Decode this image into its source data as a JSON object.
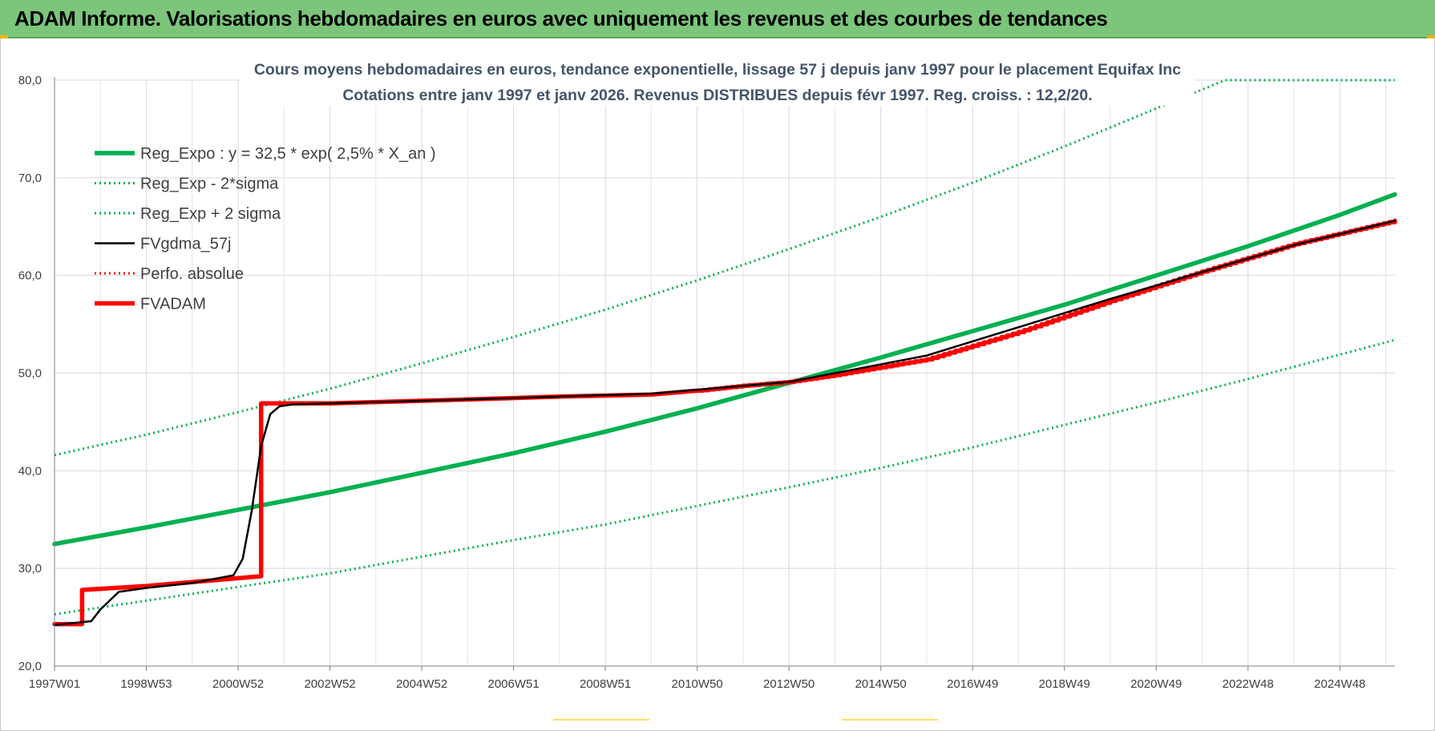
{
  "banner": {
    "title": "ADAM Informe. Valorisations hebdomadaires en euros avec uniquement les revenus et des courbes de tendances"
  },
  "chart_data": {
    "type": "line",
    "title": "Cours moyens hebdomadaires en euros, tendance exponentielle, lissage 57 j depuis janv 1997  pour le placement Equifax Inc",
    "subtitle": "Cotations entre janv 1997 et janv 2026. Revenus DISTRIBUES depuis févr 1997. Reg. croiss. : 12,2/20.",
    "xlabel": "",
    "ylabel": "",
    "ylim": [
      20,
      80
    ],
    "xlim": [
      1997.0,
      2026.2
    ],
    "grid": true,
    "legend_position": "top-left",
    "y_ticks": [
      "20,0",
      "30,0",
      "40,0",
      "50,0",
      "60,0",
      "70,0",
      "80,0"
    ],
    "y_tick_values": [
      20,
      30,
      40,
      50,
      60,
      70,
      80
    ],
    "x_ticks": [
      "1997W01",
      "1998W53",
      "2000W52",
      "2002W52",
      "2004W52",
      "2006W51",
      "2008W51",
      "2010W50",
      "2012W50",
      "2014W50",
      "2016W49",
      "2018W49",
      "2020W49",
      "2022W48",
      "2024W48"
    ],
    "x_tick_values": [
      1997,
      1999,
      2001,
      2003,
      2005,
      2007,
      2009,
      2011,
      2013,
      2015,
      2017,
      2019,
      2021,
      2023,
      2025
    ],
    "series": [
      {
        "name": "Reg_Expo : y = 32,5 * exp( 2,5% *  X_an )",
        "style": "solid-thick",
        "color": "#00b050",
        "x": [
          1997.0,
          1999.0,
          2001.0,
          2003.0,
          2005.0,
          2007.0,
          2009.0,
          2011.0,
          2013.0,
          2015.0,
          2017.0,
          2019.0,
          2021.0,
          2023.0,
          2025.0,
          2026.2
        ],
        "y": [
          32.5,
          34.2,
          36.0,
          37.8,
          39.8,
          41.8,
          44.0,
          46.4,
          49.0,
          51.6,
          54.3,
          57.0,
          60.0,
          63.0,
          66.2,
          68.3
        ]
      },
      {
        "name": "Reg_Exp - 2*sigma",
        "style": "dotted",
        "color": "#00b050",
        "x": [
          1997.0,
          1999.0,
          2001.0,
          2003.0,
          2005.0,
          2007.0,
          2009.0,
          2011.0,
          2013.0,
          2015.0,
          2017.0,
          2019.0,
          2021.0,
          2023.0,
          2025.0,
          2026.2
        ],
        "y": [
          25.3,
          26.7,
          28.1,
          29.5,
          31.2,
          32.9,
          34.5,
          36.4,
          38.3,
          40.3,
          42.4,
          44.7,
          47.0,
          49.4,
          51.9,
          53.4
        ]
      },
      {
        "name": "Reg_Exp + 2 sigma",
        "style": "dotted",
        "color": "#00b050",
        "x": [
          1997.0,
          1999.0,
          2001.0,
          2003.0,
          2005.0,
          2007.0,
          2009.0,
          2011.0,
          2013.0,
          2015.0,
          2017.0,
          2019.0,
          2021.0,
          2022.5,
          2026.2
        ],
        "y": [
          41.6,
          43.7,
          46.0,
          48.4,
          51.0,
          53.7,
          56.5,
          59.5,
          62.7,
          66.0,
          69.5,
          73.2,
          77.1,
          80.0,
          80.0
        ]
      },
      {
        "name": "FVgdma_57j",
        "style": "solid",
        "color": "#000000",
        "x": [
          1997.0,
          1997.8,
          1998.0,
          1998.4,
          1999.0,
          2000.0,
          2000.9,
          2001.1,
          2001.3,
          2001.5,
          2001.7,
          2001.9,
          2002.2,
          2003.0,
          2006.0,
          2010.0,
          2013.0,
          2016.0,
          2020.0,
          2024.0,
          2026.2
        ],
        "y": [
          24.2,
          24.6,
          25.8,
          27.6,
          28.0,
          28.5,
          29.3,
          31.0,
          36.0,
          42.5,
          45.8,
          46.6,
          46.8,
          46.9,
          47.3,
          47.9,
          49.1,
          51.8,
          57.6,
          63.1,
          65.6
        ]
      },
      {
        "name": "Perfo. absolue",
        "style": "dotted",
        "color": "#ff0000",
        "x": [],
        "y": []
      },
      {
        "name": "FVADAM",
        "style": "solid-thick",
        "color": "#ff0000",
        "x": [
          1997.0,
          1997.6,
          1997.6,
          1999.0,
          2001.5,
          2001.5,
          2003.0,
          2006.0,
          2008.0,
          2010.0,
          2011.0,
          2012.0,
          2013.0,
          2014.0,
          2016.0,
          2018.0,
          2020.0,
          2022.0,
          2024.0,
          2026.2
        ],
        "y": [
          24.3,
          24.3,
          27.8,
          28.2,
          29.2,
          46.9,
          46.9,
          47.3,
          47.6,
          47.8,
          48.2,
          48.7,
          49.1,
          49.8,
          51.4,
          54.2,
          57.4,
          60.4,
          63.2,
          65.6
        ]
      }
    ]
  }
}
